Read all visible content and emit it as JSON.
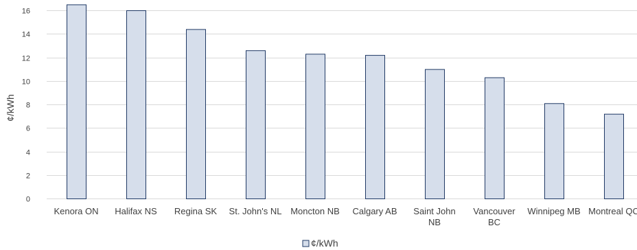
{
  "chart_data": {
    "type": "bar",
    "title": "",
    "xlabel": "",
    "ylabel": "¢/kWh",
    "ylim": [
      0,
      16
    ],
    "yticks": [
      0,
      2,
      4,
      6,
      8,
      10,
      12,
      14,
      16
    ],
    "grid": true,
    "legend_position": "bottom",
    "categories": [
      [
        "Kenora ON"
      ],
      [
        "Halifax NS"
      ],
      [
        "Regina SK"
      ],
      [
        "St. John's NL"
      ],
      [
        "Moncton NB"
      ],
      [
        "Calgary AB"
      ],
      [
        "Saint John",
        "NB"
      ],
      [
        "Vancouver",
        "BC"
      ],
      [
        "Winnipeg MB"
      ],
      [
        "Montreal QC"
      ]
    ],
    "series": [
      {
        "name": "¢/kWh",
        "values": [
          16.5,
          16.0,
          14.4,
          12.6,
          12.3,
          12.2,
          11.0,
          10.3,
          8.1,
          7.2
        ],
        "fill": "#d6deeb",
        "stroke": "#1f3864"
      }
    ],
    "gridColor": "#d9d9d9"
  }
}
